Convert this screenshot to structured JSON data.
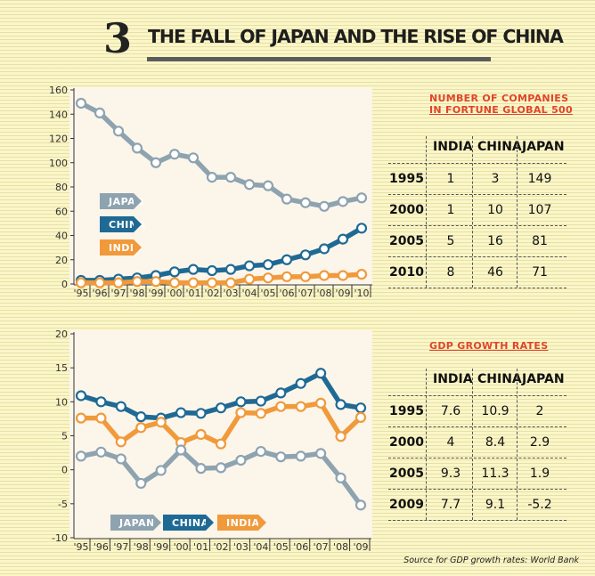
{
  "header": {
    "number": "3",
    "title": "THE FALL OF JAPAN AND THE RISE OF CHINA"
  },
  "colors": {
    "japan": "#8ea3b0",
    "china": "#1f6a94",
    "india": "#f09a3b",
    "accent_red": "#e0452a"
  },
  "chart_data": [
    {
      "type": "line",
      "categories": [
        "'95",
        "'96",
        "'97",
        "'98",
        "'99",
        "'00",
        "'01",
        "'02",
        "'03",
        "'04",
        "'05",
        "'06",
        "'07",
        "'08",
        "'09",
        "'10"
      ],
      "series": [
        {
          "name": "JAPAN",
          "values": [
            149,
            141,
            126,
            112,
            100,
            107,
            104,
            88,
            88,
            82,
            81,
            70,
            67,
            64,
            68,
            71
          ]
        },
        {
          "name": "CHINA",
          "values": [
            3,
            3,
            4,
            5,
            7,
            10,
            12,
            11,
            12,
            15,
            16,
            20,
            24,
            29,
            37,
            46
          ]
        },
        {
          "name": "INDIA",
          "values": [
            1,
            1,
            1,
            2,
            2,
            1,
            1,
            1,
            1,
            4,
            5,
            6,
            6,
            7,
            7,
            8
          ]
        }
      ],
      "ylim": [
        0,
        160
      ],
      "yticks": [
        0,
        20,
        40,
        60,
        80,
        100,
        120,
        140,
        160
      ],
      "legend": [
        "JAPAN",
        "CHINA",
        "INDIA"
      ],
      "grid": false
    },
    {
      "type": "line",
      "categories": [
        "'95",
        "'96",
        "'97",
        "'98",
        "'99",
        "'00",
        "'01",
        "'02",
        "'03",
        "'04",
        "'05",
        "'06",
        "'07",
        "'08",
        "'09"
      ],
      "series": [
        {
          "name": "CHINA",
          "values": [
            10.9,
            10,
            9.3,
            7.8,
            7.6,
            8.4,
            8.3,
            9.1,
            10,
            10.1,
            11.3,
            12.7,
            14.2,
            9.6,
            9.1
          ]
        },
        {
          "name": "INDIA",
          "values": [
            7.6,
            7.6,
            4.1,
            6.2,
            7.0,
            4.0,
            5.2,
            3.8,
            8.4,
            8.3,
            9.3,
            9.3,
            9.8,
            4.9,
            7.7
          ]
        },
        {
          "name": "JAPAN",
          "values": [
            2,
            2.6,
            1.6,
            -2.0,
            -0.1,
            2.9,
            0.2,
            0.3,
            1.4,
            2.7,
            1.9,
            2.0,
            2.4,
            -1.2,
            -5.2
          ]
        }
      ],
      "ylim": [
        -10,
        20
      ],
      "yticks": [
        -10,
        -5,
        0,
        5,
        10,
        15,
        20
      ],
      "legend": [
        "JAPAN",
        "CHINA",
        "INDIA"
      ],
      "grid": false
    }
  ],
  "legend1": {
    "japan": "JAPAN",
    "china": "CHINA",
    "india": "INDIA"
  },
  "legend2": {
    "japan": "JAPAN",
    "china": "CHINA",
    "india": "INDIA"
  },
  "table1": {
    "title_line1": "NUMBER OF COMPANIES",
    "title_line2": "IN FORTUNE GLOBAL 500",
    "headers": [
      "INDIA",
      "CHINA",
      "JAPAN"
    ],
    "rows": [
      {
        "year": "1995",
        "values": [
          "1",
          "3",
          "149"
        ]
      },
      {
        "year": "2000",
        "values": [
          "1",
          "10",
          "107"
        ]
      },
      {
        "year": "2005",
        "values": [
          "5",
          "16",
          "81"
        ]
      },
      {
        "year": "2010",
        "values": [
          "8",
          "46",
          "71"
        ]
      }
    ]
  },
  "table2": {
    "title": "GDP GROWTH RATES",
    "headers": [
      "INDIA",
      "CHINA",
      "JAPAN"
    ],
    "rows": [
      {
        "year": "1995",
        "values": [
          "7.6",
          "10.9",
          "2"
        ]
      },
      {
        "year": "2000",
        "values": [
          "4",
          "8.4",
          "2.9"
        ]
      },
      {
        "year": "2005",
        "values": [
          "9.3",
          "11.3",
          "1.9"
        ]
      },
      {
        "year": "2009",
        "values": [
          "7.7",
          "9.1",
          "-5.2"
        ]
      }
    ]
  },
  "source": "Source for GDP growth rates: World Bank"
}
